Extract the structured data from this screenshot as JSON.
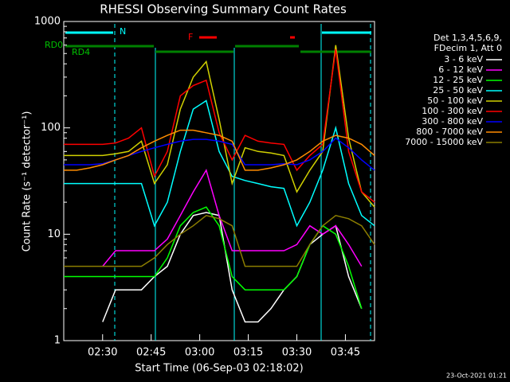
{
  "chart_data": {
    "type": "line",
    "title": "RHESSI Observing Summary Count Rates",
    "x_label": "Start Time (06-Sep-03 02:18:02)",
    "y_label": "Count Rate (s⁻¹ detector⁻¹)",
    "legend_header": [
      "Det 1,3,4,5,6,9,",
      "FDecim 1, Att 0"
    ],
    "footer": "23-Oct-2021 01:21",
    "annotations": [
      "N",
      "RD0",
      "RD4",
      "F"
    ],
    "log_y": true,
    "xlim": [
      "02:18",
      "03:54"
    ],
    "xticks": [
      "02:30",
      "02:45",
      "03:00",
      "03:15",
      "03:30",
      "03:45"
    ],
    "ylim": [
      1,
      1000
    ],
    "yticks": [
      1,
      10,
      100,
      1000
    ],
    "x": [
      "02:18",
      "02:22",
      "02:26",
      "02:30",
      "02:34",
      "02:38",
      "02:42",
      "02:46",
      "02:50",
      "02:54",
      "02:58",
      "03:02",
      "03:06",
      "03:10",
      "03:14",
      "03:18",
      "03:22",
      "03:26",
      "03:30",
      "03:34",
      "03:38",
      "03:42",
      "03:46",
      "03:50",
      "03:54"
    ],
    "series": [
      {
        "name": "3 - 6 keV",
        "color": "#ffffff",
        "values": [
          null,
          null,
          null,
          1.5,
          3,
          3,
          3,
          4,
          5,
          10,
          15,
          16,
          15,
          3,
          1.5,
          1.5,
          2,
          3,
          4,
          8,
          10,
          12,
          4,
          2,
          null
        ]
      },
      {
        "name": "6 - 12 keV",
        "color": "#ff00ff",
        "values": [
          null,
          null,
          null,
          5,
          7,
          7,
          7,
          7,
          9,
          15,
          25,
          40,
          15,
          7,
          7,
          7,
          7,
          7,
          8,
          12,
          10,
          12,
          8,
          5,
          null
        ]
      },
      {
        "name": "12 - 25 keV",
        "color": "#00ff00",
        "values": [
          4,
          4,
          4,
          4,
          4,
          4,
          4,
          4,
          6,
          12,
          16,
          18,
          12,
          4,
          3,
          3,
          3,
          3,
          4,
          8,
          12,
          10,
          5,
          2,
          null
        ]
      },
      {
        "name": "25 - 50 keV",
        "color": "#00ffff",
        "values": [
          30,
          30,
          30,
          30,
          30,
          30,
          30,
          12,
          20,
          60,
          150,
          180,
          60,
          35,
          32,
          30,
          28,
          27,
          12,
          20,
          40,
          100,
          30,
          15,
          12
        ]
      },
      {
        "name": "50 - 100 keV",
        "color": "#d0d000",
        "values": [
          55,
          55,
          55,
          55,
          57,
          60,
          75,
          30,
          45,
          150,
          300,
          420,
          120,
          30,
          65,
          60,
          58,
          55,
          25,
          40,
          60,
          600,
          80,
          25,
          18
        ]
      },
      {
        "name": "100 - 300 keV",
        "color": "#ff0000",
        "values": [
          70,
          70,
          70,
          70,
          72,
          80,
          100,
          35,
          60,
          200,
          250,
          280,
          90,
          50,
          85,
          75,
          72,
          70,
          40,
          55,
          70,
          550,
          60,
          25,
          20
        ]
      },
      {
        "name": "300 - 800 keV",
        "color": "#0000ff",
        "values": [
          45,
          45,
          45,
          46,
          50,
          55,
          60,
          65,
          70,
          75,
          78,
          78,
          75,
          70,
          45,
          45,
          45,
          46,
          45,
          50,
          60,
          80,
          65,
          50,
          40
        ]
      },
      {
        "name": "800 - 7000 keV",
        "color": "#ff8c00",
        "values": [
          40,
          40,
          42,
          45,
          50,
          55,
          65,
          75,
          85,
          95,
          95,
          90,
          85,
          75,
          40,
          40,
          42,
          45,
          50,
          60,
          75,
          85,
          80,
          70,
          55
        ]
      },
      {
        "name": "7000 - 15000 keV",
        "color": "#8b7d00",
        "values": [
          5,
          5,
          5,
          5,
          5,
          5,
          5,
          6,
          8,
          10,
          12,
          15,
          14,
          12,
          5,
          5,
          5,
          5,
          5,
          8,
          12,
          15,
          14,
          12,
          8
        ]
      }
    ]
  }
}
